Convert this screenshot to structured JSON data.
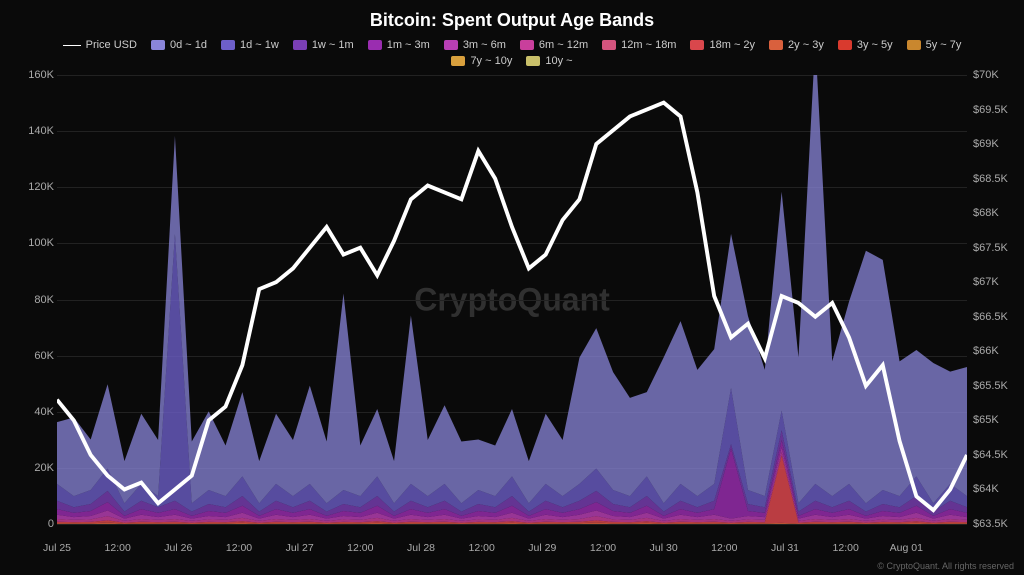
{
  "title": "Bitcoin: Spent Output Age Bands",
  "watermark": "CryptoQuant",
  "copyright": "© CryptoQuant. All rights reserved",
  "background_color": "#0a0a0a",
  "legend": [
    {
      "label": "Price USD",
      "type": "line",
      "color": "#ffffff"
    },
    {
      "label": "0d ~ 1d",
      "type": "swatch",
      "color": "#8a85d9"
    },
    {
      "label": "1d ~ 1w",
      "type": "swatch",
      "color": "#6d5fc9"
    },
    {
      "label": "1w ~ 1m",
      "type": "swatch",
      "color": "#7b3fb5"
    },
    {
      "label": "1m ~ 3m",
      "type": "swatch",
      "color": "#9a2db0"
    },
    {
      "label": "3m ~ 6m",
      "type": "swatch",
      "color": "#b83fb5"
    },
    {
      "label": "6m ~ 12m",
      "type": "swatch",
      "color": "#c93f9c"
    },
    {
      "label": "12m ~ 18m",
      "type": "swatch",
      "color": "#d4547e"
    },
    {
      "label": "18m ~ 2y",
      "type": "swatch",
      "color": "#d9474c"
    },
    {
      "label": "2y ~ 3y",
      "type": "swatch",
      "color": "#d9603d"
    },
    {
      "label": "3y ~ 5y",
      "type": "swatch",
      "color": "#d93a2e"
    },
    {
      "label": "5y ~ 7y",
      "type": "swatch",
      "color": "#c9872e"
    },
    {
      "label": "7y ~ 10y",
      "type": "swatch",
      "color": "#d9a03d"
    },
    {
      "label": "10y ~",
      "type": "swatch",
      "color": "#c9c06a"
    }
  ],
  "chart": {
    "type": "stacked-area-with-line",
    "y_left": {
      "min": 0,
      "max": 160000,
      "step": 20000,
      "ticks": [
        0,
        20000,
        40000,
        60000,
        80000,
        100000,
        120000,
        140000,
        160000
      ],
      "labels": [
        "0",
        "20K",
        "40K",
        "60K",
        "80K",
        "100K",
        "120K",
        "140K",
        "160K"
      ]
    },
    "y_right": {
      "min": 63500,
      "max": 70000,
      "step": 500,
      "ticks": [
        63500,
        64000,
        64500,
        65000,
        65500,
        66000,
        66500,
        67000,
        67500,
        68000,
        68500,
        69000,
        69500,
        70000
      ],
      "labels": [
        "$63.5K",
        "$64K",
        "$64.5K",
        "$65K",
        "$65.5K",
        "$66K",
        "$66.5K",
        "$67K",
        "$67.5K",
        "$68K",
        "$68.5K",
        "$69K",
        "$69.5K",
        "$70K"
      ]
    },
    "x": {
      "labels": [
        "Jul 25",
        "12:00",
        "Jul 26",
        "12:00",
        "Jul 27",
        "12:00",
        "Jul 28",
        "12:00",
        "Jul 29",
        "12:00",
        "Jul 30",
        "12:00",
        "Jul 31",
        "12:00",
        "Aug 01"
      ],
      "positions_pct": [
        0,
        6.67,
        13.33,
        20,
        26.67,
        33.33,
        40,
        46.67,
        53.33,
        60,
        66.67,
        73.33,
        80,
        86.67,
        93.33
      ]
    },
    "grid_color": "#222",
    "price_series": {
      "color": "#ffffff",
      "width": 1.3,
      "values": [
        65300,
        65000,
        64500,
        64200,
        64000,
        64100,
        63800,
        64000,
        64200,
        65000,
        65200,
        65800,
        66900,
        67000,
        67200,
        67500,
        67800,
        67400,
        67500,
        67100,
        67600,
        68200,
        68400,
        68300,
        68200,
        68900,
        68500,
        67800,
        67200,
        67400,
        67900,
        68200,
        69000,
        69200,
        69400,
        69500,
        69600,
        69400,
        68300,
        66800,
        66200,
        66400,
        65900,
        66800,
        66700,
        66500,
        66700,
        66200,
        65500,
        65800,
        64700,
        63900,
        63700,
        64000,
        64500
      ]
    },
    "age_bands": [
      {
        "key": "0d_1d",
        "color": "#8a85d9",
        "opacity": 0.75,
        "values": [
          22000,
          28000,
          18000,
          30000,
          15000,
          25000,
          20000,
          35000,
          22000,
          28000,
          18000,
          30000,
          15000,
          25000,
          20000,
          35000,
          22000,
          70000,
          18000,
          24000,
          15000,
          60000,
          20000,
          28000,
          22000,
          18000,
          18000,
          24000,
          15000,
          25000,
          20000,
          45000,
          50000,
          42000,
          35000,
          30000,
          52000,
          58000,
          45000,
          48000,
          55000,
          62000,
          45000,
          78000,
          52000,
          158000,
          48000,
          65000,
          90000,
          82000,
          48000,
          45000,
          50000,
          40000,
          46000
        ]
      },
      {
        "key": "1d_1w",
        "color": "#6d5fc9",
        "opacity": 0.78,
        "values": [
          6000,
          4000,
          5000,
          8000,
          3000,
          6000,
          4000,
          95000,
          3000,
          5000,
          4000,
          7000,
          3000,
          6000,
          4000,
          6000,
          3000,
          5000,
          4000,
          7000,
          3000,
          6000,
          4000,
          6000,
          3000,
          5000,
          4000,
          7000,
          3000,
          6000,
          4000,
          6000,
          8000,
          5000,
          4000,
          7000,
          3000,
          6000,
          4000,
          6000,
          20000,
          5000,
          4000,
          7000,
          3000,
          6000,
          4000,
          6000,
          3000,
          5000,
          4000,
          7000,
          3000,
          6000,
          4000
        ]
      },
      {
        "key": "1w_1m",
        "color": "#7b3fb5",
        "opacity": 0.8,
        "values": [
          3000,
          2000,
          2500,
          4000,
          1500,
          3000,
          2000,
          3000,
          1500,
          2500,
          2000,
          3500,
          1500,
          3000,
          2000,
          3000,
          1500,
          2500,
          2000,
          3500,
          1500,
          3000,
          2000,
          3000,
          1500,
          2500,
          2000,
          3500,
          1500,
          3000,
          2000,
          3000,
          4000,
          2500,
          2000,
          3500,
          1500,
          3000,
          2000,
          3000,
          1500,
          2500,
          2000,
          3500,
          1500,
          3000,
          2000,
          3000,
          1500,
          2500,
          2000,
          3500,
          1500,
          3000,
          2000
        ]
      },
      {
        "key": "1m_3m",
        "color": "#9a2db0",
        "opacity": 0.82,
        "values": [
          2000,
          1500,
          1800,
          3000,
          1000,
          2000,
          1500,
          2000,
          1000,
          1800,
          1500,
          2500,
          1000,
          2000,
          1500,
          2000,
          1000,
          1800,
          1500,
          2500,
          1000,
          2000,
          1500,
          2000,
          1000,
          1800,
          1500,
          2500,
          1000,
          2000,
          1500,
          2000,
          3000,
          1800,
          1500,
          2500,
          1000,
          2000,
          1500,
          2000,
          25000,
          1800,
          1500,
          2500,
          1000,
          2000,
          1500,
          2000,
          1000,
          1800,
          1500,
          2500,
          1000,
          2000,
          1500
        ]
      },
      {
        "key": "3m_6m",
        "color": "#b83fb5",
        "opacity": 0.82,
        "values": [
          1500,
          1000,
          1200,
          2000,
          800,
          1500,
          1000,
          1500,
          800,
          1200,
          1000,
          1800,
          800,
          1500,
          1000,
          1500,
          800,
          1200,
          1000,
          1800,
          800,
          1500,
          1000,
          1500,
          800,
          1200,
          1000,
          1800,
          800,
          1500,
          1000,
          1500,
          2000,
          1200,
          1000,
          1800,
          800,
          1500,
          1000,
          1500,
          800,
          1200,
          1000,
          1800,
          800,
          1500,
          1000,
          1500,
          800,
          1200,
          1000,
          1800,
          800,
          1500,
          1000
        ]
      },
      {
        "key": "6m_12m",
        "color": "#c93f9c",
        "opacity": 0.82,
        "values": [
          1000,
          800,
          900,
          1500,
          600,
          1000,
          800,
          1000,
          600,
          900,
          800,
          1200,
          600,
          1000,
          800,
          1000,
          600,
          900,
          800,
          1200,
          600,
          1000,
          800,
          1000,
          600,
          900,
          800,
          1200,
          600,
          1000,
          800,
          1000,
          1500,
          900,
          800,
          1200,
          600,
          1000,
          800,
          1000,
          600,
          900,
          800,
          1200,
          600,
          1000,
          800,
          1000,
          600,
          900,
          800,
          1200,
          600,
          1000,
          800
        ]
      },
      {
        "key": "18m_2y",
        "color": "#d9474c",
        "opacity": 0.85,
        "values": [
          500,
          400,
          450,
          800,
          300,
          500,
          400,
          500,
          300,
          450,
          400,
          600,
          300,
          500,
          400,
          500,
          300,
          450,
          400,
          600,
          300,
          500,
          400,
          500,
          300,
          450,
          400,
          600,
          300,
          500,
          400,
          500,
          800,
          450,
          400,
          600,
          300,
          500,
          400,
          500,
          300,
          450,
          400,
          24000,
          300,
          500,
          400,
          500,
          300,
          450,
          400,
          600,
          300,
          500,
          400
        ]
      },
      {
        "key": "2y_3y",
        "color": "#d9603d",
        "opacity": 0.85,
        "values": [
          300,
          250,
          280,
          500,
          200,
          300,
          250,
          300,
          200,
          280,
          250,
          400,
          200,
          300,
          250,
          300,
          200,
          280,
          250,
          400,
          200,
          300,
          250,
          300,
          200,
          280,
          250,
          400,
          200,
          300,
          250,
          300,
          500,
          280,
          250,
          400,
          200,
          300,
          250,
          300,
          200,
          280,
          250,
          400,
          200,
          300,
          250,
          300,
          200,
          280,
          250,
          400,
          200,
          300,
          250
        ]
      }
    ]
  }
}
